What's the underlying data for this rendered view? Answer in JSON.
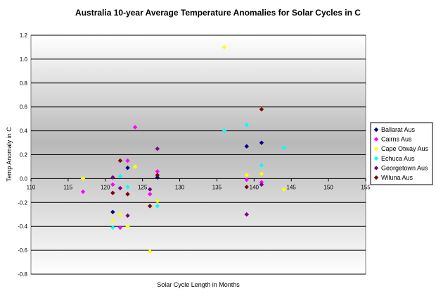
{
  "chart_data": {
    "type": "scatter",
    "title": "Australia 10-year Average Temperature Anomalies for Solar Cycles in C",
    "xlabel": "Solar Cycle Length in Months",
    "ylabel": "Temp Anomaly in C",
    "xlim": [
      110,
      155
    ],
    "ylim": [
      -0.8,
      1.2
    ],
    "x_ticks": [
      110,
      115,
      120,
      125,
      130,
      135,
      140,
      145,
      150,
      155
    ],
    "y_ticks": [
      1.2,
      1.0,
      0.8,
      0.6,
      0.4,
      0.2,
      0.0,
      -0.2,
      -0.4,
      -0.6,
      -0.8
    ],
    "x_tick_labels": [
      "110",
      "115",
      "120",
      "125",
      "130",
      "135",
      "140",
      "145",
      "150",
      "155"
    ],
    "y_tick_labels": [
      "1.2",
      "1.0",
      "0.8",
      "0.6",
      "0.4",
      "0.2",
      "0.0",
      "-0.2",
      "-0.4",
      "-0.6",
      "-0.8"
    ],
    "grid": true,
    "legend_position": "right",
    "series": [
      {
        "name": "Ballarat Aus",
        "color": "#000080",
        "points": [
          [
            121,
            -0.28
          ],
          [
            123,
            0.09
          ],
          [
            127,
            0.01
          ],
          [
            139,
            0.27
          ],
          [
            141,
            0.3
          ]
        ]
      },
      {
        "name": "Cairns Aus",
        "color": "#ff00ff",
        "points": [
          [
            117,
            -0.11
          ],
          [
            121,
            -0.05
          ],
          [
            122,
            -0.41
          ],
          [
            123,
            0.15
          ],
          [
            124,
            0.43
          ],
          [
            126,
            -0.13
          ],
          [
            127,
            0.06
          ],
          [
            139,
            -0.01
          ],
          [
            141,
            -0.03
          ]
        ]
      },
      {
        "name": "Cape Otway Aus",
        "color": "#ffff00",
        "points": [
          [
            117,
            0.0
          ],
          [
            121,
            -0.35
          ],
          [
            122,
            -0.3
          ],
          [
            123,
            -0.4
          ],
          [
            124,
            0.1
          ],
          [
            126,
            -0.61
          ],
          [
            127,
            -0.19
          ],
          [
            136,
            1.1
          ],
          [
            139,
            0.03
          ],
          [
            141,
            0.04
          ],
          [
            144,
            -0.09
          ]
        ]
      },
      {
        "name": "Echuca Aus",
        "color": "#00ffff",
        "points": [
          [
            121,
            -0.41
          ],
          [
            122,
            0.02
          ],
          [
            123,
            -0.07
          ],
          [
            127,
            -0.23
          ],
          [
            136,
            0.4
          ],
          [
            139,
            0.45
          ],
          [
            141,
            0.11
          ],
          [
            144,
            0.26
          ]
        ]
      },
      {
        "name": "Georgetown Aus",
        "color": "#800080",
        "points": [
          [
            121,
            0.01
          ],
          [
            122,
            -0.08
          ],
          [
            123,
            -0.31
          ],
          [
            126,
            -0.09
          ],
          [
            127,
            0.25
          ],
          [
            139,
            -0.3
          ],
          [
            141,
            -0.05
          ]
        ]
      },
      {
        "name": "Wiluna Aus",
        "color": "#800000",
        "points": [
          [
            121,
            -0.12
          ],
          [
            122,
            0.15
          ],
          [
            123,
            -0.13
          ],
          [
            126,
            -0.23
          ],
          [
            127,
            0.03
          ],
          [
            139,
            -0.07
          ],
          [
            141,
            0.58
          ]
        ]
      }
    ]
  }
}
